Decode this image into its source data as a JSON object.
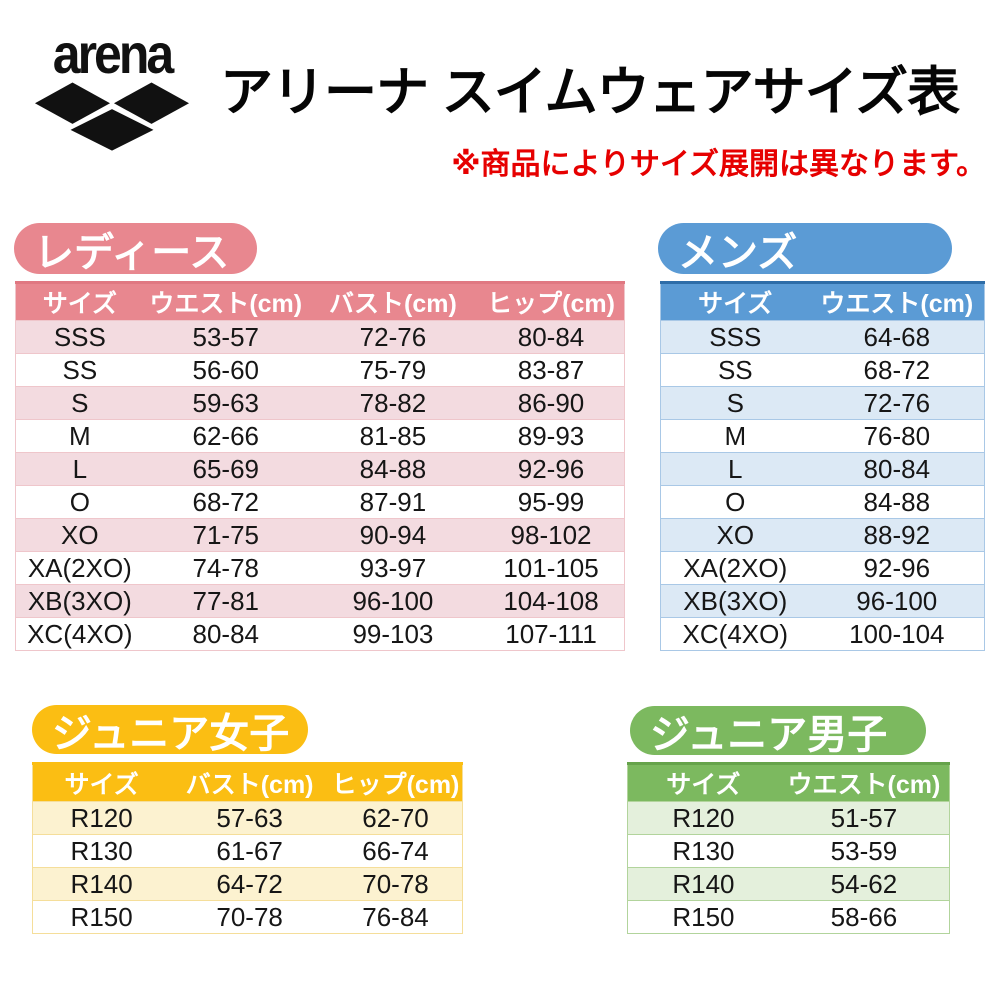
{
  "header": {
    "logo_text": "arena",
    "title": "アリーナ スイムウェアサイズ表",
    "note": "※商品によりサイズ展開は異なります。"
  },
  "colors": {
    "ladies_accent": "#E8878F",
    "ladies_light": "#F3DBE0",
    "mens_accent": "#5B9BD5",
    "mens_light": "#DCE9F5",
    "junior_girls_accent": "#FBBE13",
    "junior_girls_light": "#FCF2D0",
    "junior_boys_accent": "#7CB95F",
    "junior_boys_light": "#E4F0DC",
    "note_red": "#E60000"
  },
  "tables": {
    "ladies": {
      "label": "レディース",
      "columns": [
        "サイズ",
        "ウエスト(cm)",
        "バスト(cm)",
        "ヒップ(cm)"
      ],
      "rows": [
        [
          "SSS",
          "53-57",
          "72-76",
          "80-84"
        ],
        [
          "SS",
          "56-60",
          "75-79",
          "83-87"
        ],
        [
          "S",
          "59-63",
          "78-82",
          "86-90"
        ],
        [
          "M",
          "62-66",
          "81-85",
          "89-93"
        ],
        [
          "L",
          "65-69",
          "84-88",
          "92-96"
        ],
        [
          "O",
          "68-72",
          "87-91",
          "95-99"
        ],
        [
          "XO",
          "71-75",
          "90-94",
          "98-102"
        ],
        [
          "XA(2XO)",
          "74-78",
          "93-97",
          "101-105"
        ],
        [
          "XB(3XO)",
          "77-81",
          "96-100",
          "104-108"
        ],
        [
          "XC(4XO)",
          "80-84",
          "99-103",
          "107-111"
        ]
      ]
    },
    "mens": {
      "label": "メンズ",
      "columns": [
        "サイズ",
        "ウエスト(cm)"
      ],
      "rows": [
        [
          "SSS",
          "64-68"
        ],
        [
          "SS",
          "68-72"
        ],
        [
          "S",
          "72-76"
        ],
        [
          "M",
          "76-80"
        ],
        [
          "L",
          "80-84"
        ],
        [
          "O",
          "84-88"
        ],
        [
          "XO",
          "88-92"
        ],
        [
          "XA(2XO)",
          "92-96"
        ],
        [
          "XB(3XO)",
          "96-100"
        ],
        [
          "XC(4XO)",
          "100-104"
        ]
      ]
    },
    "junior_girls": {
      "label": "ジュニア女子",
      "columns": [
        "サイズ",
        "バスト(cm)",
        "ヒップ(cm)"
      ],
      "rows": [
        [
          "R120",
          "57-63",
          "62-70"
        ],
        [
          "R130",
          "61-67",
          "66-74"
        ],
        [
          "R140",
          "64-72",
          "70-78"
        ],
        [
          "R150",
          "70-78",
          "76-84"
        ]
      ]
    },
    "junior_boys": {
      "label": "ジュニア男子",
      "columns": [
        "サイズ",
        "ウエスト(cm)"
      ],
      "rows": [
        [
          "R120",
          "51-57"
        ],
        [
          "R130",
          "53-59"
        ],
        [
          "R140",
          "54-62"
        ],
        [
          "R150",
          "58-66"
        ]
      ]
    }
  }
}
